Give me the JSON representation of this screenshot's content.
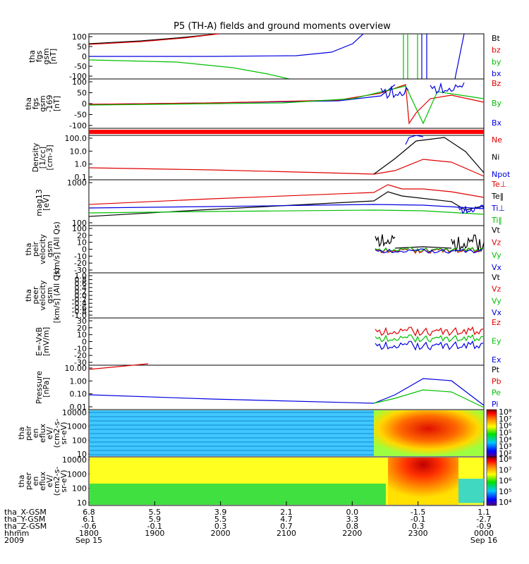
{
  "title": "P5 (TH-A) fields and ground moments overview",
  "colorbar_labels": [
    "10⁸",
    "10⁷",
    "10⁶",
    "10⁵",
    "10⁴",
    "10³",
    "10²"
  ],
  "colorbar_labels2": [
    "10⁸",
    "10⁷",
    "10⁶",
    "10⁵",
    "10⁴"
  ],
  "chart_data": [
    {
      "type": "line",
      "id": "fgs",
      "ylabel": [
        "tha",
        "fgs",
        "gsm",
        "[nT]"
      ],
      "ylim": [
        -100,
        100
      ],
      "ticks": [
        "100",
        "50",
        "0",
        "-50",
        "-100"
      ],
      "legend": [
        {
          "name": "Bt",
          "color": "#000000"
        },
        {
          "name": "bz",
          "color": "#e00000"
        },
        {
          "name": "by",
          "color": "#00c000"
        },
        {
          "name": "bx",
          "color": "#0000e0"
        }
      ]
    },
    {
      "type": "line",
      "id": "fgs_dsl",
      "ylabel": [
        "tha",
        "fgs",
        "gsm",
        "-169",
        "[nT]"
      ],
      "ylim": [
        -120,
        100
      ],
      "ticks": [
        "100",
        "50",
        "0",
        "-50",
        "-100"
      ],
      "legend": [
        {
          "name": "Bz",
          "color": "#e00000"
        },
        {
          "name": "By",
          "color": "#00c000"
        },
        {
          "name": "Bx",
          "color": "#0000e0"
        }
      ]
    },
    {
      "type": "line",
      "id": "density",
      "ylabel": [
        "Density",
        "[1/cc]",
        "[cm-3]"
      ],
      "scale": "log",
      "ylim": [
        0.1,
        100
      ],
      "ticks": [
        "100.0",
        "10.0",
        "1.0",
        "0.1"
      ],
      "legend": [
        {
          "name": "Ne",
          "color": "#e00000"
        },
        {
          "name": "Ni",
          "color": "#000000"
        },
        {
          "name": "Npot",
          "color": "#0000e0"
        }
      ]
    },
    {
      "type": "line",
      "id": "temp",
      "ylabel": [
        "mag13",
        "[eV]"
      ],
      "scale": "log",
      "ticks": [
        "1000",
        "100"
      ],
      "legend": [
        {
          "name": "Te⊥",
          "color": "#e00000"
        },
        {
          "name": "Te‖",
          "color": "#000000"
        },
        {
          "name": "Ti⊥",
          "color": "#0000e0"
        },
        {
          "name": "Ti‖",
          "color": "#00c000"
        }
      ]
    },
    {
      "type": "line",
      "id": "peir_vel",
      "ylabel": [
        "tha",
        "peir",
        "velocity",
        "gsm",
        "[km/s] (All Qs)"
      ],
      "ylim": [
        -30,
        30
      ],
      "ticks": [
        "100",
        "20",
        "10",
        "0",
        "-10",
        "-20",
        "-30"
      ],
      "legend": [
        {
          "name": "Vt",
          "color": "#000000"
        },
        {
          "name": "Vz",
          "color": "#e00000"
        },
        {
          "name": "Vy",
          "color": "#00c000"
        },
        {
          "name": "Vx",
          "color": "#0000e0"
        }
      ]
    },
    {
      "type": "line",
      "id": "peer_vel",
      "ylabel": [
        "tha",
        "peer",
        "velocity",
        "gsm",
        "[km/s] (All Qs)"
      ],
      "ylim": [
        -1,
        1
      ],
      "ticks": [
        "1.0",
        "0.8",
        "0.6",
        "0.4",
        "0.2",
        "0.0",
        "-0.2",
        "-0.4",
        "-0.6",
        "-0.8",
        "-1.0"
      ],
      "legend": [
        {
          "name": "Vt",
          "color": "#000000"
        },
        {
          "name": "Vz",
          "color": "#e00000"
        },
        {
          "name": "Vy",
          "color": "#00c000"
        },
        {
          "name": "Vx",
          "color": "#0000e0"
        }
      ]
    },
    {
      "type": "line",
      "id": "efield",
      "ylabel": [
        "E=-VxB",
        "[mV/m]"
      ],
      "ylim": [
        -30,
        30
      ],
      "ticks": [
        "30",
        "20",
        "10",
        "0",
        "-10",
        "-20",
        "-30"
      ],
      "legend": [
        {
          "name": "Ez",
          "color": "#e00000"
        },
        {
          "name": "Ey",
          "color": "#00c000"
        },
        {
          "name": "Ex",
          "color": "#0000e0"
        }
      ]
    },
    {
      "type": "line",
      "id": "pressure",
      "ylabel": [
        "Pressure",
        "[nPa]"
      ],
      "scale": "log",
      "ticks": [
        "10.00",
        "1.00",
        "0.10",
        "0.01"
      ],
      "legend": [
        {
          "name": "Pt",
          "color": "#000000"
        },
        {
          "name": "Pb",
          "color": "#e00000"
        },
        {
          "name": "Pe",
          "color": "#00c000"
        },
        {
          "name": "Pi",
          "color": "#0000e0"
        }
      ]
    },
    {
      "type": "heatmap",
      "id": "peir_en",
      "ylabel": [
        "tha",
        "peir",
        "en",
        "eflux",
        "eV/",
        "(cm2-s-",
        "sr-eV)"
      ],
      "scale": "log",
      "ticks": [
        "10000",
        "1000",
        "100",
        "10"
      ]
    },
    {
      "type": "heatmap",
      "id": "peer_en",
      "ylabel": [
        "tha",
        "peer",
        "en",
        "eflux",
        "eV/",
        "(cm2-s-",
        "sr-eV)"
      ],
      "scale": "log",
      "ticks": [
        "10000",
        "1000",
        "100",
        "10"
      ]
    }
  ],
  "ephemeris": {
    "labels": [
      "tha_X-GSM",
      "tha_Y-GSM",
      "tha_Z-GSM",
      "hhmm",
      "2009"
    ],
    "columns": [
      [
        "6.8",
        "6.1",
        "-0.6",
        "1800",
        "Sep 15"
      ],
      [
        "5.5",
        "5.9",
        "-0.1",
        "1900",
        ""
      ],
      [
        "3.9",
        "5.5",
        "0.3",
        "2000",
        ""
      ],
      [
        "2.1",
        "4.7",
        "0.7",
        "2100",
        ""
      ],
      [
        "0.0",
        "3.3",
        "0.8",
        "2200",
        ""
      ],
      [
        "-1.5",
        "-0.1",
        "0.3",
        "2300",
        ""
      ],
      [
        "1.1",
        "-2.7",
        "-0.9",
        "0000",
        "Sep 16"
      ]
    ]
  }
}
